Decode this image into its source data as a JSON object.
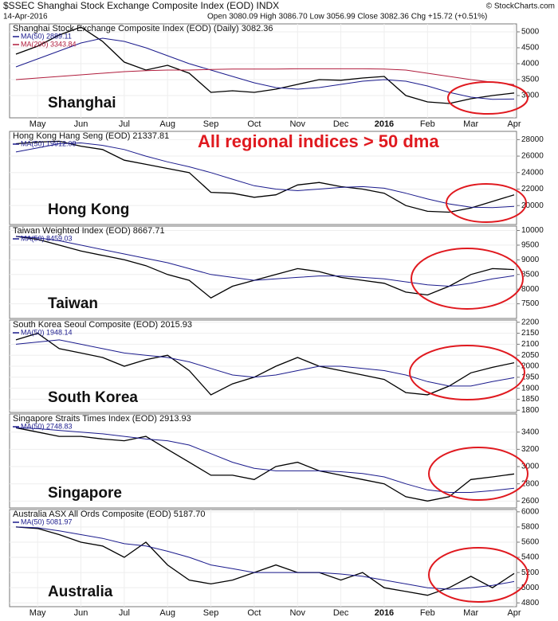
{
  "header": {
    "symbol_line": "$SSEC Shanghai Stock Exchange Composite Index (EOD) INDX",
    "date": "14-Apr-2016",
    "quote": "Open 3080.09 High 3086.70 Low 3056.99 Close 3082.36 Chg +15.72 (+0.51%)",
    "source": "© StockCharts.com"
  },
  "chart_data": [
    {
      "type": "line",
      "label": "Shanghai",
      "categories": [
        null,
        "May",
        null,
        "Jun",
        null,
        "Jul",
        null,
        "Aug",
        null,
        "Sep",
        null,
        "Oct",
        null,
        "Nov",
        null,
        "Dec",
        null,
        "2016",
        null,
        "Feb",
        null,
        "Mar",
        null,
        "Apr"
      ],
      "ylim": [
        2300,
        5250
      ],
      "yticks": [
        3000,
        3500,
        4000,
        4500,
        5000
      ],
      "series": [
        {
          "name": "Shanghai Stock Exchange Composite Index (EOD) (Daily) 3082.36",
          "color": "#000000",
          "values": [
            4300,
            4550,
            4900,
            5150,
            4700,
            4050,
            3800,
            3950,
            3700,
            3100,
            3150,
            3100,
            3200,
            3350,
            3500,
            3480,
            3550,
            3600,
            3000,
            2800,
            2750,
            2900,
            3000,
            3080
          ]
        },
        {
          "name": "MA(50) 2889.11",
          "color": "#1a1a8c",
          "values": [
            3900,
            4150,
            4400,
            4650,
            4800,
            4700,
            4500,
            4250,
            4000,
            3800,
            3600,
            3400,
            3250,
            3200,
            3250,
            3350,
            3450,
            3500,
            3450,
            3300,
            3100,
            2950,
            2880,
            2890
          ]
        },
        {
          "name": "MA(200) 3343.84",
          "color": "#b01c3c",
          "values": [
            3500,
            3550,
            3600,
            3650,
            3700,
            3750,
            3780,
            3800,
            3800,
            3820,
            3830,
            3830,
            3830,
            3840,
            3840,
            3840,
            3840,
            3830,
            3800,
            3700,
            3600,
            3500,
            3420,
            3344
          ]
        }
      ]
    },
    {
      "type": "line",
      "label": "Hong Kong",
      "annotation": "All regional indices > 50 dma",
      "ylim": [
        17700,
        29000
      ],
      "yticks": [
        20000,
        22000,
        24000,
        26000,
        28000
      ],
      "series": [
        {
          "name": "Hong Kong Hang Seng (EOD) 21337.81",
          "color": "#000000",
          "values": [
            27500,
            27700,
            27800,
            27200,
            26800,
            25500,
            25000,
            24500,
            24000,
            21600,
            21500,
            21000,
            21300,
            22500,
            22800,
            22300,
            22000,
            21500,
            20000,
            19300,
            19200,
            19700,
            20500,
            21300
          ]
        },
        {
          "name": "MA(50) 19912.08",
          "color": "#1a1a8c",
          "values": [
            26500,
            27000,
            27500,
            27600,
            27300,
            26800,
            26000,
            25300,
            24700,
            24000,
            23200,
            22400,
            22000,
            21800,
            22000,
            22200,
            22300,
            22100,
            21500,
            20800,
            20200,
            19800,
            19750,
            19900
          ]
        }
      ]
    },
    {
      "type": "line",
      "label": "Taiwan",
      "ylim": [
        7000,
        10150
      ],
      "yticks": [
        7500,
        8000,
        8500,
        9000,
        9500,
        10000
      ],
      "series": [
        {
          "name": "Taiwan Weighted Index (EOD) 8667.71",
          "color": "#000000",
          "values": [
            9800,
            9700,
            9500,
            9300,
            9150,
            9000,
            8800,
            8500,
            8300,
            7700,
            8100,
            8300,
            8500,
            8700,
            8600,
            8400,
            8300,
            8200,
            7900,
            7800,
            8100,
            8500,
            8700,
            8668
          ]
        },
        {
          "name": "MA(50) 8459.03",
          "color": "#1a1a8c",
          "values": [
            9800,
            9750,
            9650,
            9500,
            9350,
            9200,
            9050,
            8900,
            8700,
            8500,
            8400,
            8300,
            8350,
            8400,
            8450,
            8450,
            8400,
            8350,
            8250,
            8150,
            8100,
            8200,
            8350,
            8459
          ]
        }
      ]
    },
    {
      "type": "line",
      "label": "South Korea",
      "ylim": [
        1790,
        2210
      ],
      "yticks": [
        1800,
        1850,
        1900,
        1950,
        2000,
        2050,
        2100,
        2150,
        2200
      ],
      "series": [
        {
          "name": "South Korea Seoul Composite (EOD) 2015.93",
          "color": "#000000",
          "values": [
            2120,
            2150,
            2080,
            2060,
            2040,
            2000,
            2030,
            2050,
            1980,
            1870,
            1920,
            1950,
            2000,
            2040,
            2000,
            1980,
            1960,
            1940,
            1880,
            1870,
            1910,
            1970,
            1995,
            2016
          ]
        },
        {
          "name": "MA(50) 1948.14",
          "color": "#1a1a8c",
          "values": [
            2100,
            2110,
            2120,
            2100,
            2080,
            2060,
            2050,
            2040,
            2020,
            1990,
            1960,
            1950,
            1960,
            1980,
            2000,
            2000,
            1990,
            1980,
            1960,
            1930,
            1910,
            1910,
            1930,
            1948
          ]
        }
      ]
    },
    {
      "type": "line",
      "label": "Singapore",
      "ylim": [
        2520,
        3610
      ],
      "yticks": [
        2600,
        2800,
        3000,
        3200,
        3400
      ],
      "series": [
        {
          "name": "Singapore Straits Times Index (EOD) 2913.93",
          "color": "#000000",
          "values": [
            3450,
            3400,
            3350,
            3350,
            3320,
            3300,
            3350,
            3200,
            3050,
            2900,
            2900,
            2850,
            3000,
            3050,
            2950,
            2900,
            2850,
            2800,
            2650,
            2600,
            2650,
            2850,
            2880,
            2914
          ]
        },
        {
          "name": "MA(50) 2748.83",
          "color": "#1a1a8c",
          "values": [
            3450,
            3440,
            3420,
            3400,
            3380,
            3350,
            3320,
            3300,
            3250,
            3150,
            3050,
            2980,
            2950,
            2950,
            2950,
            2940,
            2920,
            2880,
            2800,
            2730,
            2700,
            2700,
            2720,
            2749
          ]
        }
      ]
    },
    {
      "type": "line",
      "label": "Australia",
      "categories": [
        null,
        "May",
        null,
        "Jun",
        null,
        "Jul",
        null,
        "Aug",
        null,
        "Sep",
        null,
        "Oct",
        null,
        "Nov",
        null,
        "Dec",
        null,
        "2016",
        null,
        "Feb",
        null,
        "Mar",
        null,
        "Apr"
      ],
      "ylim": [
        4750,
        6030
      ],
      "yticks": [
        4800,
        5000,
        5200,
        5400,
        5600,
        5800,
        6000
      ],
      "series": [
        {
          "name": "Australia ASX All Ords Composite (EOD) 5187.70",
          "color": "#000000",
          "values": [
            5800,
            5780,
            5700,
            5600,
            5550,
            5400,
            5600,
            5300,
            5100,
            5050,
            5100,
            5200,
            5300,
            5200,
            5200,
            5100,
            5200,
            5000,
            4950,
            4900,
            5000,
            5150,
            5000,
            5188
          ]
        },
        {
          "name": "MA(50) 5081.97",
          "color": "#1a1a8c",
          "values": [
            5800,
            5790,
            5750,
            5700,
            5650,
            5580,
            5550,
            5480,
            5400,
            5300,
            5250,
            5200,
            5200,
            5200,
            5200,
            5180,
            5150,
            5100,
            5050,
            5000,
            4980,
            5000,
            5030,
            5082
          ]
        }
      ]
    }
  ]
}
